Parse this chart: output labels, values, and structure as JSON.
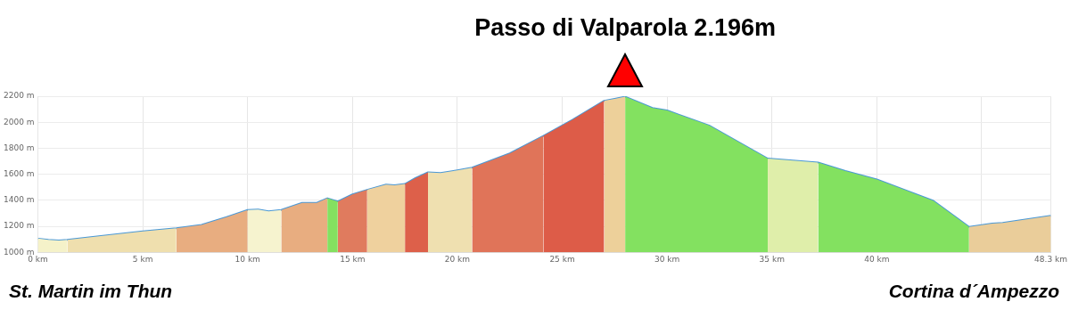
{
  "chart_data": {
    "type": "area",
    "annotations": [
      {
        "text": "Passo di Valparola 2.196m",
        "x": 28,
        "y": 2196
      },
      "St. Martin im Thun",
      "Cortina d´Ampezzo"
    ],
    "xlim": [
      0,
      48.3
    ],
    "xticks": [
      {
        "value": 0,
        "label": "0 km"
      },
      {
        "value": 5,
        "label": "5 km"
      },
      {
        "value": 10,
        "label": "10 km"
      },
      {
        "value": 15,
        "label": "15 km"
      },
      {
        "value": 20,
        "label": "20 km"
      },
      {
        "value": 25,
        "label": "25 km"
      },
      {
        "value": 30,
        "label": "30 km"
      },
      {
        "value": 35,
        "label": "35 km"
      },
      {
        "value": 40,
        "label": "40 km"
      },
      {
        "value": 45,
        "label": null
      },
      {
        "value": 48.3,
        "label": "48.3 km"
      }
    ],
    "ylim": [
      1000,
      2200
    ],
    "yticks": [
      {
        "value": 1000,
        "label": "1000 m"
      },
      {
        "value": 1200,
        "label": "1200 m"
      },
      {
        "value": 1400,
        "label": "1400 m"
      },
      {
        "value": 1600,
        "label": "1600 m"
      },
      {
        "value": 1800,
        "label": "1800 m"
      },
      {
        "value": 2000,
        "label": "2000 m"
      },
      {
        "value": 2200,
        "label": "2200 m"
      }
    ],
    "grid": true,
    "legend": false,
    "series": [
      {
        "color": "#f5f2c9",
        "x": [
          0,
          0.5,
          1,
          1.4
        ],
        "values": [
          1105,
          1095,
          1090,
          1095
        ]
      },
      {
        "color": "#efdfae",
        "x": [
          1.4,
          3,
          5,
          6.6
        ],
        "values": [
          1095,
          1125,
          1160,
          1185
        ]
      },
      {
        "color": "#e8ad80",
        "x": [
          6.6,
          7.8,
          9,
          10
        ],
        "values": [
          1185,
          1210,
          1270,
          1325
        ]
      },
      {
        "color": "#f6f3cf",
        "x": [
          10,
          10.5,
          11,
          11.6
        ],
        "values": [
          1325,
          1328,
          1315,
          1325
        ]
      },
      {
        "color": "#e8ad80",
        "x": [
          11.6,
          12.6,
          13.3,
          13.8
        ],
        "values": [
          1325,
          1380,
          1380,
          1415
        ]
      },
      {
        "color": "#84e060",
        "x": [
          13.8,
          14.3
        ],
        "values": [
          1415,
          1390
        ]
      },
      {
        "color": "#e07b5e",
        "x": [
          14.3,
          15,
          15.7
        ],
        "values": [
          1390,
          1445,
          1480
        ]
      },
      {
        "color": "#efd19e",
        "x": [
          15.7,
          16.6,
          17,
          17.5
        ],
        "values": [
          1480,
          1520,
          1515,
          1525
        ]
      },
      {
        "color": "#dd604a",
        "x": [
          17.5,
          18,
          18.6
        ],
        "values": [
          1525,
          1570,
          1615
        ]
      },
      {
        "color": "#efe0b0",
        "x": [
          18.6,
          19.2,
          20,
          20.7
        ],
        "values": [
          1615,
          1610,
          1630,
          1650
        ]
      },
      {
        "color": "#e07459",
        "x": [
          20.7,
          22.5,
          24.1
        ],
        "values": [
          1650,
          1760,
          1895
        ]
      },
      {
        "color": "#dd5c48",
        "x": [
          24.1,
          25.5,
          27
        ],
        "values": [
          1895,
          2020,
          2165
        ]
      },
      {
        "color": "#edd09a",
        "x": [
          27,
          27.5,
          28
        ],
        "values": [
          2165,
          2180,
          2196
        ]
      },
      {
        "color": "#83e160",
        "x": [
          28,
          29.3,
          30,
          32,
          34.8
        ],
        "values": [
          2196,
          2110,
          2090,
          1975,
          1720
        ]
      },
      {
        "color": "#dfeeaa",
        "x": [
          34.8,
          36,
          37.2
        ],
        "values": [
          1720,
          1705,
          1690
        ]
      },
      {
        "color": "#83e160",
        "x": [
          37.2,
          38.5,
          40,
          41.8,
          42.7,
          44.4
        ],
        "values": [
          1690,
          1625,
          1560,
          1450,
          1395,
          1195
        ]
      },
      {
        "color": "#eacd9a",
        "x": [
          44.4,
          45.5,
          46,
          48.3
        ],
        "values": [
          1195,
          1220,
          1225,
          1280
        ]
      },
      {
        "type": "line",
        "color": "#4a98d6",
        "x": [
          0,
          0.5,
          1,
          1.4,
          3,
          5,
          6.6,
          7.8,
          9,
          10,
          10.5,
          11,
          11.6,
          12.6,
          13.3,
          13.8,
          14.3,
          15,
          15.7,
          16.6,
          17,
          17.5,
          18,
          18.6,
          19.2,
          20,
          20.7,
          22.5,
          24.1,
          25.5,
          27,
          27.5,
          28,
          29.3,
          30,
          32,
          34.8,
          36,
          37.2,
          38.5,
          40,
          41.8,
          42.7,
          44.4,
          45.5,
          46,
          48.3
        ],
        "values": [
          1105,
          1095,
          1090,
          1095,
          1125,
          1160,
          1185,
          1210,
          1270,
          1325,
          1328,
          1315,
          1325,
          1380,
          1380,
          1415,
          1390,
          1445,
          1480,
          1520,
          1515,
          1525,
          1570,
          1615,
          1610,
          1630,
          1650,
          1760,
          1895,
          2020,
          2165,
          2180,
          2196,
          2110,
          2090,
          1975,
          1720,
          1705,
          1690,
          1625,
          1560,
          1450,
          1395,
          1195,
          1220,
          1225,
          1280
        ]
      }
    ]
  }
}
